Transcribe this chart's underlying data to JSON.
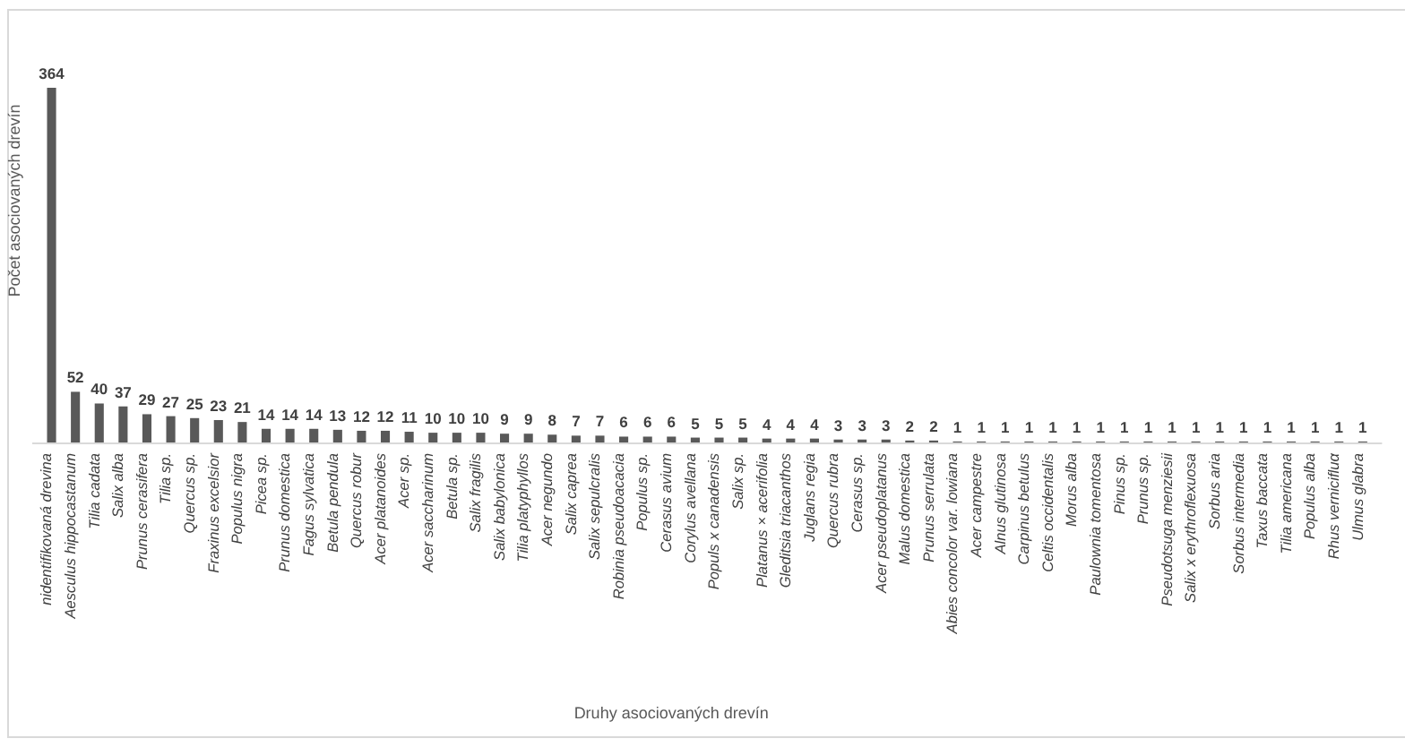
{
  "chart_data": {
    "type": "bar",
    "xlabel": "Druhy asociovaných drevín",
    "ylabel": "Počet asociovaných drevín",
    "categories": [
      "nidentifikovaná drevina",
      "Aesculus hippocastanum",
      "Tilia cadata",
      "Salix alba",
      "Prunus cerasifera",
      "Tilia sp.",
      "Quercus sp.",
      "Fraxinus excelsior",
      "Populus nigra",
      "Picea sp.",
      "Prunus domestica",
      "Fagus sylvatica",
      "Betula pendula",
      "Quercus robur",
      "Acer platanoides",
      "Acer sp.",
      "Acer saccharinum",
      "Betula sp.",
      "Salix fragilis",
      "Salix babylonica",
      "Tilia platyphyllos",
      "Acer negundo",
      "Salix caprea",
      "Salix sepulcralis",
      "Robinia pseudoacacia",
      "Populus sp.",
      "Cerasus avium",
      "Corylus avellana",
      "Populs x canadensis",
      "Salix sp.",
      "Platanus × acerifolia",
      "Gleditsia triacanthos",
      "Juglans regia",
      "Quercus rubra",
      "Cerasus sp.",
      "Acer pseudoplatanus",
      "Malus domestica",
      "Prunus serrulata",
      "Abies concolor var. lowiana",
      "Acer campestre",
      "Alnus glutinosa",
      "Carpinus betulus",
      "Celtis occidentalis",
      "Morus alba",
      "Paulownia tomentosa",
      "Pinus sp.",
      "Prunus sp.",
      "Pseudotsuga menziesii",
      "Salix x erythroflexuosa",
      "Sorbus aria",
      "Sorbus intermedia",
      "Taxus baccata",
      "Tilia americana",
      "Populus alba",
      "Rhus vernicifluα",
      "Ulmus glabra"
    ],
    "values": [
      364,
      52,
      40,
      37,
      29,
      27,
      25,
      23,
      21,
      14,
      14,
      14,
      13,
      12,
      12,
      11,
      10,
      10,
      10,
      9,
      9,
      8,
      7,
      7,
      6,
      6,
      6,
      5,
      5,
      5,
      4,
      4,
      4,
      3,
      3,
      3,
      2,
      2,
      1,
      1,
      1,
      1,
      1,
      1,
      1,
      1,
      1,
      1,
      1,
      1,
      1,
      1,
      1,
      1,
      1,
      1
    ],
    "color": "#595959",
    "data_labels": true
  }
}
